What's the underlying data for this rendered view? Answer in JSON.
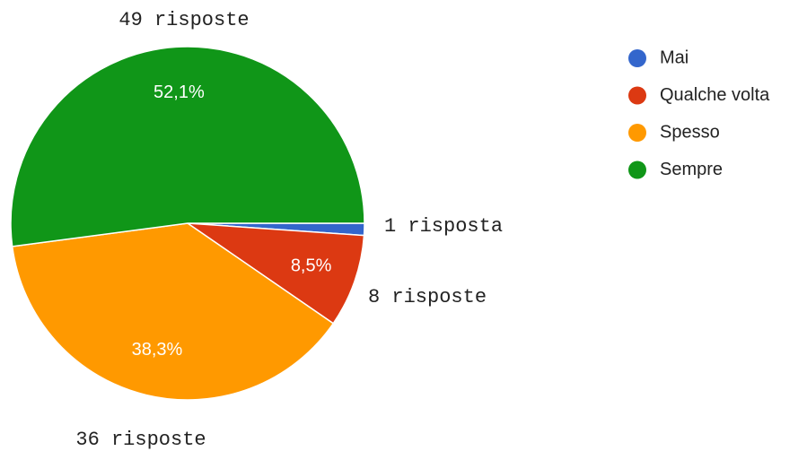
{
  "chart_data": {
    "type": "pie",
    "categories": [
      "Mai",
      "Qualche volta",
      "Spesso",
      "Sempre"
    ],
    "values": [
      1.1,
      8.5,
      38.3,
      52.1
    ],
    "value_labels": [
      null,
      "8,5%",
      "38,3%",
      "52,1%"
    ],
    "count_labels": [
      "1 risposta",
      "8 risposte",
      "36 risposte",
      "49 risposte"
    ],
    "colors": [
      "#3366cc",
      "#dc3912",
      "#ff9900",
      "#109618"
    ],
    "legend": "right"
  }
}
